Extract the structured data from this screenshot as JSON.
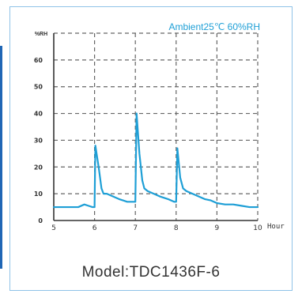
{
  "header": {
    "ambient": "Ambient25℃ 60%RH"
  },
  "footer": {
    "model": "Model:TDC1436F-6"
  },
  "colors": {
    "series": "#1e9fd6",
    "axis": "#333333",
    "frame": "#8fc3e8",
    "grid": "#666666",
    "ambient_text": "#1e9fd6"
  },
  "chart_data": {
    "type": "line",
    "title": "Ambient25℃ 60%RH",
    "xlabel": "Hour",
    "ylabel": "%RH",
    "xlim": [
      5,
      10
    ],
    "ylim": [
      0,
      70
    ],
    "xticks": [
      5,
      6,
      7,
      8,
      9,
      10
    ],
    "yticks": [
      0,
      10,
      20,
      30,
      40,
      50,
      60
    ],
    "grid": true,
    "series": [
      {
        "x": [
          5.0,
          5.3,
          5.6,
          5.75,
          5.85,
          5.95,
          6.0,
          6.02,
          6.1,
          6.17,
          6.22,
          6.3,
          6.45,
          6.6,
          6.8,
          6.95,
          7.0,
          7.03,
          7.1,
          7.17,
          7.22,
          7.3,
          7.45,
          7.6,
          7.8,
          7.95,
          8.0,
          8.03,
          8.1,
          8.17,
          8.25,
          8.4,
          8.55,
          8.7,
          8.85,
          9.0,
          9.2,
          9.4,
          9.6,
          9.8,
          10.0
        ],
        "y": [
          5,
          5,
          5,
          6,
          5.5,
          5,
          5,
          28,
          20,
          12,
          10,
          10,
          9,
          8,
          7,
          7,
          7,
          40,
          25,
          15,
          12,
          11,
          10,
          9,
          8,
          7,
          7,
          27,
          16,
          12,
          11,
          10,
          9,
          8,
          7.5,
          6.5,
          6,
          6,
          5.5,
          5,
          5
        ]
      }
    ]
  }
}
